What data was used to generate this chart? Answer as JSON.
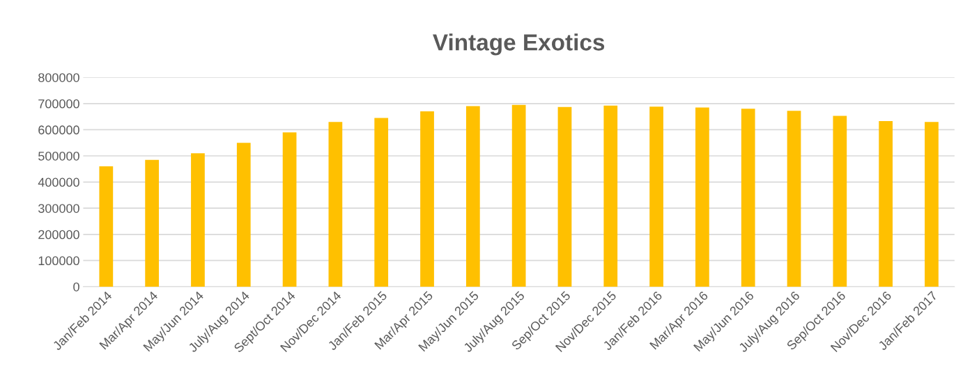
{
  "chart_data": {
    "type": "bar",
    "title": "Vintage Exotics",
    "categories": [
      "Jan/Feb 2014",
      "Mar/Apr 2014",
      "May/Jun 2014",
      "July/Aug 2014",
      "Sept/Oct 2014",
      "Nov/Dec 2014",
      "Jan/Feb 2015",
      "Mar/Apr 2015",
      "May/Jun 2015",
      "July/Aug 2015",
      "Sep/Oct 2015",
      "Nov/Dec 2015",
      "Jan/Feb 2016",
      "Mar/Apr 2016",
      "May/Jun 2016",
      "July/Aug 2016",
      "Sep/Oct 2016",
      "Nov/Dec 2016",
      "Jan/Feb 2017"
    ],
    "values": [
      460000,
      485000,
      510000,
      550000,
      590000,
      630000,
      645000,
      670000,
      690000,
      695000,
      687000,
      692000,
      688000,
      685000,
      680000,
      672000,
      653000,
      633000,
      630000
    ],
    "color": "#ffc000",
    "ylim": [
      0,
      800000
    ],
    "yticks": [
      0,
      100000,
      200000,
      300000,
      400000,
      500000,
      600000,
      700000,
      800000
    ],
    "grid": "y"
  }
}
